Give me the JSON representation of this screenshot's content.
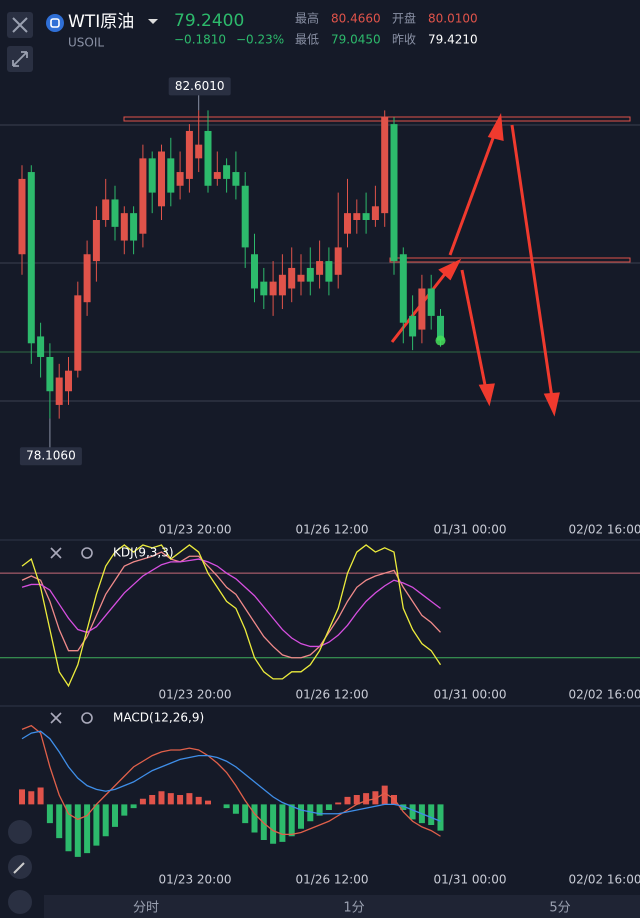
{
  "header": {
    "symbol": "WTI原油",
    "code": "USOIL",
    "price": "79.2400",
    "change": "−0.1810",
    "change_pct": "−0.23%",
    "high_label": "最高",
    "high": "80.4660",
    "open_label": "开盘",
    "open": "80.0100",
    "low_label": "最低",
    "low": "79.0450",
    "prev_label": "昨收",
    "prev": "79.4210"
  },
  "tabs": [
    "分时",
    "1分",
    "5分"
  ],
  "chart_data": [
    {
      "type": "candlestick",
      "up_color": "#e0534a",
      "down_color": "#2dba6c",
      "ylim": [
        76.62,
        83.19
      ],
      "x_labels": [
        "01/23 20:00",
        "01/26 12:00",
        "01/31 00:00",
        "02/02 16:00"
      ],
      "high_label": {
        "value": 82.601,
        "label": "82.6010"
      },
      "low_label": {
        "value": 78.106,
        "label": "78.1060"
      },
      "open": [
        80.5,
        81.7,
        79.3,
        79.0,
        78.3,
        78.5,
        78.8,
        79.8,
        80.4,
        81.0,
        81.3,
        80.7,
        81.1,
        80.8,
        81.9,
        81.2,
        81.9,
        81.5,
        81.6,
        81.9,
        82.3,
        81.6,
        81.8,
        81.7,
        81.5,
        80.5,
        80.1,
        79.9,
        79.9,
        80.0,
        80.1,
        80.3,
        80.2,
        80.4,
        80.2,
        80.8,
        81.0,
        81.1,
        81.0,
        81.1,
        82.4,
        80.5,
        79.6,
        79.4,
        80.0,
        79.6
      ],
      "high": [
        81.8,
        81.8,
        79.5,
        79.2,
        78.9,
        79.0,
        80.1,
        80.7,
        81.2,
        81.6,
        81.5,
        81.2,
        81.2,
        82.1,
        82.0,
        82.1,
        82.2,
        82.0,
        82.4,
        82.601,
        82.6,
        82.0,
        81.9,
        82.0,
        81.7,
        80.8,
        80.3,
        80.4,
        80.5,
        80.6,
        80.5,
        80.6,
        80.7,
        80.6,
        81.4,
        81.6,
        81.3,
        81.4,
        81.5,
        82.6,
        82.5,
        80.6,
        79.9,
        80.2,
        80.2,
        79.7
      ],
      "low": [
        80.2,
        78.9,
        78.7,
        78.106,
        78.1,
        78.3,
        78.7,
        79.6,
        80.1,
        80.9,
        80.7,
        80.5,
        80.5,
        80.6,
        81.1,
        81.0,
        81.2,
        81.3,
        81.4,
        81.7,
        81.4,
        81.5,
        81.4,
        81.3,
        80.3,
        79.8,
        79.7,
        79.6,
        79.7,
        79.8,
        79.9,
        79.9,
        80.0,
        79.9,
        80.0,
        80.6,
        80.8,
        80.8,
        80.9,
        80.9,
        80.2,
        79.2,
        79.1,
        79.2,
        79.4,
        79.15
      ],
      "close": [
        81.6,
        79.2,
        79.0,
        78.5,
        78.7,
        78.8,
        79.9,
        80.5,
        81.0,
        81.3,
        80.9,
        81.1,
        80.7,
        81.9,
        81.4,
        82.0,
        81.4,
        81.7,
        82.3,
        82.1,
        81.5,
        81.7,
        81.6,
        81.5,
        80.6,
        80.0,
        79.9,
        80.1,
        80.2,
        80.3,
        80.2,
        80.1,
        80.4,
        80.1,
        80.6,
        81.1,
        81.1,
        81.0,
        81.2,
        82.5,
        80.4,
        79.5,
        79.3,
        80.0,
        79.6,
        79.24
      ]
    },
    {
      "type": "line",
      "title": "KDJ(9,3,3)",
      "ylim": [
        -10,
        100
      ],
      "ref_lines": [
        {
          "value": 80,
          "color": "#c86a78"
        },
        {
          "value": 20,
          "color": "#3fae5a"
        }
      ],
      "x_labels": [
        "01/23 20:00",
        "01/26 12:00",
        "01/31 00:00",
        "02/02 16:00"
      ],
      "series": [
        {
          "name": "K",
          "color": "#f08a8a",
          "values": [
            75,
            78,
            75,
            60,
            40,
            25,
            25,
            35,
            50,
            65,
            75,
            85,
            88,
            90,
            92,
            95,
            90,
            88,
            92,
            92,
            85,
            78,
            70,
            65,
            55,
            45,
            35,
            28,
            22,
            20,
            20,
            22,
            28,
            38,
            48,
            60,
            70,
            75,
            78,
            80,
            82,
            70,
            60,
            50,
            45,
            38
          ]
        },
        {
          "name": "D",
          "color": "#d64fe0",
          "values": [
            70,
            72,
            72,
            68,
            58,
            48,
            40,
            38,
            42,
            50,
            58,
            66,
            72,
            78,
            82,
            86,
            88,
            88,
            89,
            90,
            88,
            85,
            80,
            76,
            70,
            64,
            56,
            48,
            40,
            34,
            30,
            28,
            28,
            31,
            36,
            43,
            52,
            60,
            66,
            71,
            75,
            73,
            70,
            65,
            60,
            55
          ]
        },
        {
          "name": "J",
          "color": "#ecec3c",
          "values": [
            85,
            90,
            70,
            40,
            10,
            0,
            15,
            40,
            65,
            85,
            95,
            100,
            95,
            100,
            98,
            100,
            90,
            95,
            100,
            95,
            80,
            70,
            60,
            55,
            40,
            20,
            10,
            5,
            5,
            10,
            10,
            15,
            25,
            40,
            55,
            80,
            95,
            100,
            95,
            98,
            95,
            55,
            40,
            30,
            25,
            15
          ]
        }
      ]
    },
    {
      "type": "macd",
      "title": "MACD(12,26,9)",
      "ylim": [
        -0.35,
        0.45
      ],
      "up_color": "#e0534a",
      "down_color": "#2dba6c",
      "x_labels": [
        "01/23 20:00",
        "01/26 12:00",
        "01/31 00:00",
        "02/02 16:00"
      ],
      "hist": [
        0.08,
        0.07,
        0.09,
        -0.1,
        -0.18,
        -0.25,
        -0.28,
        -0.26,
        -0.22,
        -0.17,
        -0.12,
        -0.06,
        -0.02,
        0.03,
        0.05,
        0.07,
        0.06,
        0.05,
        0.06,
        0.04,
        0.02,
        0.0,
        -0.02,
        -0.05,
        -0.1,
        -0.15,
        -0.19,
        -0.21,
        -0.2,
        -0.17,
        -0.13,
        -0.09,
        -0.06,
        -0.03,
        0.01,
        0.04,
        0.05,
        0.06,
        0.07,
        0.1,
        0.05,
        -0.03,
        -0.08,
        -0.1,
        -0.11,
        -0.14
      ],
      "series": [
        {
          "name": "DIF",
          "color": "#e0604a",
          "values": [
            0.4,
            0.42,
            0.38,
            0.2,
            0.05,
            -0.05,
            -0.08,
            -0.06,
            0.0,
            0.05,
            0.1,
            0.15,
            0.2,
            0.23,
            0.26,
            0.28,
            0.29,
            0.29,
            0.3,
            0.29,
            0.26,
            0.22,
            0.17,
            0.1,
            0.02,
            -0.05,
            -0.1,
            -0.14,
            -0.16,
            -0.16,
            -0.15,
            -0.13,
            -0.11,
            -0.09,
            -0.06,
            -0.03,
            0.0,
            0.02,
            0.03,
            0.06,
            0.03,
            -0.04,
            -0.09,
            -0.12,
            -0.14,
            -0.17
          ]
        },
        {
          "name": "DEA",
          "color": "#3f8ee8",
          "values": [
            0.35,
            0.38,
            0.39,
            0.35,
            0.28,
            0.2,
            0.14,
            0.1,
            0.08,
            0.07,
            0.08,
            0.1,
            0.12,
            0.15,
            0.18,
            0.2,
            0.22,
            0.24,
            0.25,
            0.26,
            0.26,
            0.25,
            0.23,
            0.2,
            0.16,
            0.12,
            0.08,
            0.04,
            0.01,
            -0.01,
            -0.03,
            -0.04,
            -0.05,
            -0.05,
            -0.05,
            -0.04,
            -0.03,
            -0.02,
            -0.01,
            0.0,
            0.0,
            -0.01,
            -0.03,
            -0.05,
            -0.07,
            -0.09
          ]
        }
      ]
    }
  ]
}
